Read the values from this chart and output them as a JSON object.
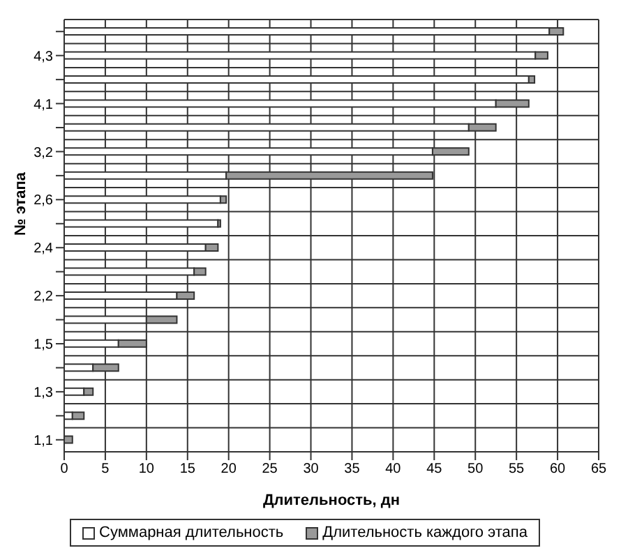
{
  "chart_data": {
    "type": "bar",
    "orientation": "horizontal",
    "stacked": true,
    "xlabel": "Длительность, дн",
    "ylabel": "№ этапа",
    "categories": [
      null,
      "4,3",
      null,
      "4,1",
      null,
      "3,2",
      null,
      "2,6",
      null,
      "2,4",
      null,
      "2,2",
      null,
      "1,5",
      null,
      "1,3",
      null,
      "1,1"
    ],
    "series": [
      {
        "name": "Суммарная длительность",
        "color": "#ffffff",
        "values": [
          59,
          57.3,
          56.5,
          52.5,
          49.2,
          44.8,
          19.7,
          19.0,
          18.7,
          17.2,
          15.8,
          13.7,
          10.0,
          6.6,
          3.5,
          2.4,
          1.0,
          0
        ]
      },
      {
        "name": "Длительность каждого этапа",
        "color": "#999999",
        "values": [
          1.7,
          1.5,
          0.7,
          4,
          3.3,
          4.4,
          25.1,
          0.7,
          0.3,
          1.5,
          1.4,
          2.1,
          3.7,
          3.4,
          3.1,
          1.1,
          1.4,
          1.0
        ]
      }
    ],
    "xlim": [
      0,
      65
    ],
    "xticks": [
      0,
      5,
      10,
      15,
      20,
      25,
      30,
      35,
      40,
      45,
      50,
      55,
      60,
      65
    ],
    "grid": true,
    "legend": "bottom"
  }
}
